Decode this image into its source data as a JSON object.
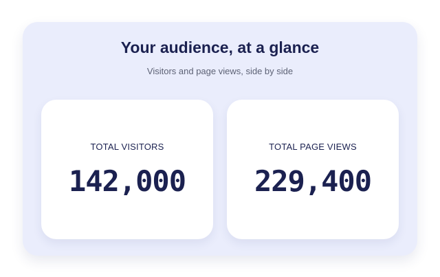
{
  "header": {
    "title": "Your audience, at a glance",
    "subtitle": "Visitors and page views, side by side"
  },
  "cards": [
    {
      "label": "TOTAL VISITORS",
      "value": "142,000"
    },
    {
      "label": "TOTAL PAGE VIEWS",
      "value": "229,400"
    }
  ]
}
